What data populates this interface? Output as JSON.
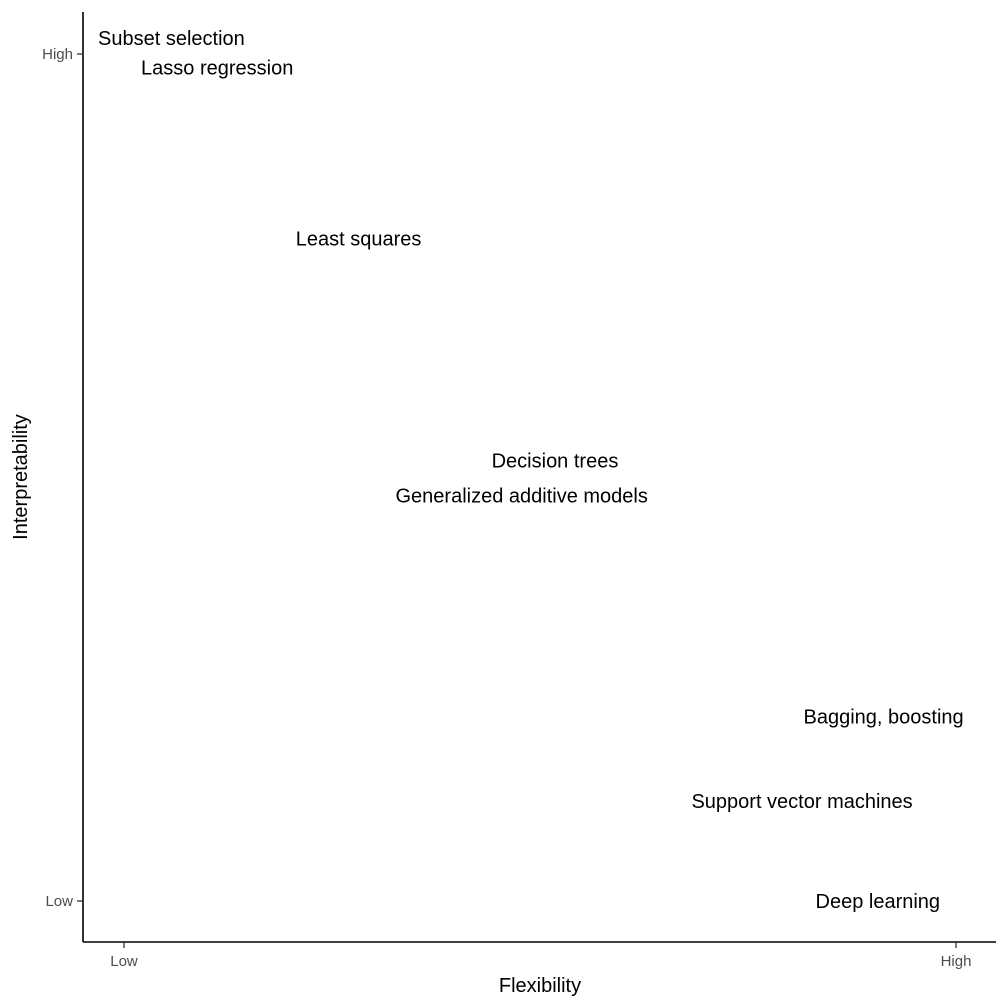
{
  "chart_data": {
    "type": "scatter",
    "title": "",
    "xlabel": "Flexibility",
    "ylabel": "Interpretability",
    "xlim": [
      0,
      1
    ],
    "ylim": [
      0,
      1
    ],
    "grid": false,
    "x_ticks": [
      {
        "value": 0,
        "label": "Low"
      },
      {
        "value": 1,
        "label": "High"
      }
    ],
    "y_ticks": [
      {
        "value": 0,
        "label": "Low"
      },
      {
        "value": 1,
        "label": "High"
      }
    ],
    "points": [
      {
        "label": "Subset selection",
        "x": 0.057,
        "y": 1.019
      },
      {
        "label": "Lasso regression",
        "x": 0.112,
        "y": 0.984
      },
      {
        "label": "Least squares",
        "x": 0.282,
        "y": 0.782
      },
      {
        "label": "Decision trees",
        "x": 0.518,
        "y": 0.52
      },
      {
        "label": "Generalized additive models",
        "x": 0.478,
        "y": 0.479
      },
      {
        "label": "Bagging, boosting",
        "x": 0.913,
        "y": 0.218
      },
      {
        "label": "Support vector machines",
        "x": 0.815,
        "y": 0.118
      },
      {
        "label": "Deep learning",
        "x": 0.906,
        "y": 0.0
      }
    ]
  }
}
